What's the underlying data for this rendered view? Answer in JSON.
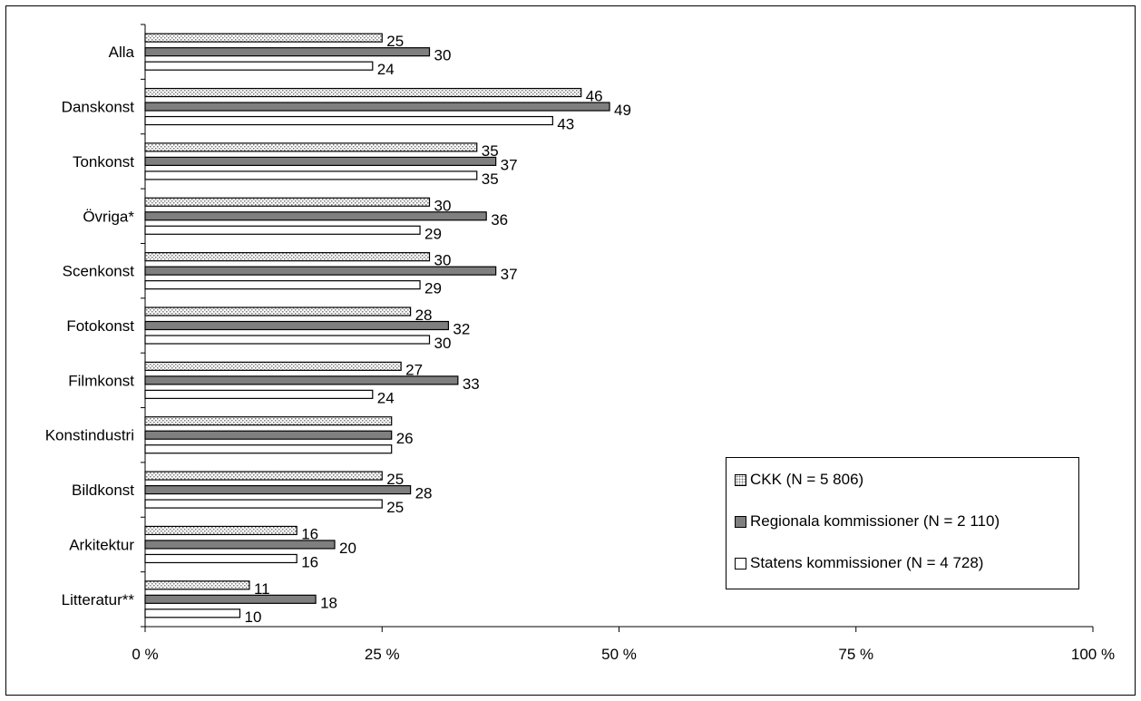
{
  "chart_data": {
    "type": "bar",
    "orientation": "horizontal",
    "categories": [
      "Alla",
      "Danskonst",
      "Tonkonst",
      "Övriga*",
      "Scenkonst",
      "Fotokonst",
      "Filmkonst",
      "Konstindustri",
      "Bildkonst",
      "Arkitektur",
      "Litteratur**"
    ],
    "series": [
      {
        "name": "CKK (N = 5 806)",
        "fill": "dotted",
        "color": "#d8d8d8",
        "values": [
          25,
          46,
          35,
          30,
          30,
          28,
          27,
          26,
          25,
          16,
          11
        ],
        "labels": [
          "25",
          "46",
          "35",
          "30",
          "30",
          "28",
          "27",
          "",
          "25",
          "16",
          "11"
        ]
      },
      {
        "name": "Regionala kommissioner (N = 2 110)",
        "fill": "solid",
        "color": "#7f7f7f",
        "values": [
          30,
          49,
          37,
          36,
          37,
          32,
          33,
          26,
          28,
          20,
          18
        ],
        "labels": [
          "30",
          "49",
          "37",
          "36",
          "37",
          "32",
          "33",
          "26",
          "28",
          "20",
          "18"
        ]
      },
      {
        "name": "Statens kommissioner (N = 4 728)",
        "fill": "solid",
        "color": "#ffffff",
        "values": [
          24,
          43,
          35,
          29,
          29,
          30,
          24,
          26,
          25,
          16,
          10
        ],
        "labels": [
          "24",
          "43",
          "35",
          "29",
          "29",
          "30",
          "24",
          "",
          "25",
          "16",
          "10"
        ]
      }
    ],
    "xlim": [
      0,
      100
    ],
    "xticks": [
      0,
      25,
      50,
      75,
      100
    ],
    "xtick_labels": [
      "0 %",
      "25 %",
      "50 %",
      "75 %",
      "100 %"
    ],
    "title": "",
    "xlabel": "",
    "ylabel": "",
    "grid": false,
    "legend_position": "bottom-right"
  }
}
